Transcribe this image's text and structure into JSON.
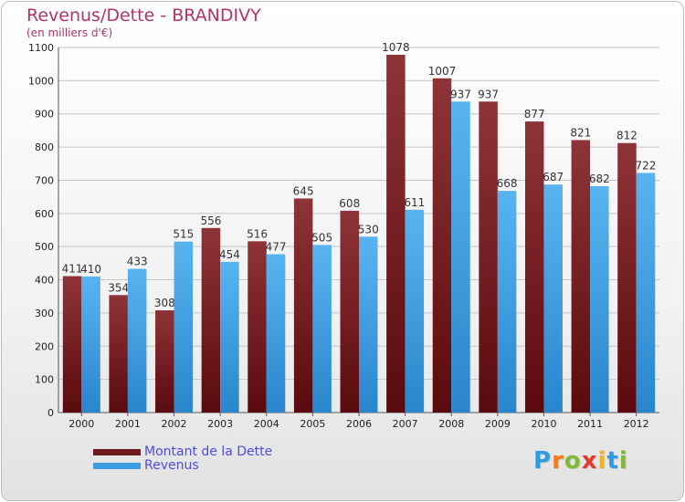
{
  "title": "Revenus/Dette - BRANDIVY",
  "subtitle": "(en milliers d'€)",
  "colors": {
    "title": "#b0346a",
    "series_dette": "#6e1a1e",
    "series_revenus": "#3d9ee3",
    "legend_text": "#4d4de0"
  },
  "legend": [
    {
      "label": "Montant de la Dette",
      "color": "#6e1a1e"
    },
    {
      "label": "Revenus",
      "color": "#3d9ee3"
    }
  ],
  "logo": {
    "text": "Proxiti",
    "icon": "proxiti-logo"
  },
  "chart_data": {
    "type": "bar",
    "title": "Revenus/Dette - BRANDIVY",
    "subtitle": "(en milliers d'€)",
    "categories": [
      "2000",
      "2001",
      "2002",
      "2003",
      "2004",
      "2005",
      "2006",
      "2007",
      "2008",
      "2009",
      "2010",
      "2011",
      "2012"
    ],
    "series": [
      {
        "name": "Montant de la Dette",
        "values": [
          411,
          354,
          308,
          556,
          516,
          645,
          608,
          1078,
          1007,
          937,
          877,
          821,
          812
        ]
      },
      {
        "name": "Revenus",
        "values": [
          410,
          433,
          515,
          454,
          477,
          505,
          530,
          611,
          937,
          668,
          687,
          682,
          722
        ]
      }
    ],
    "ylim": [
      0,
      1100
    ],
    "yticks": [
      0,
      100,
      200,
      300,
      400,
      500,
      600,
      700,
      800,
      900,
      1000,
      1100
    ],
    "grid": true,
    "legend_position": "bottom-left"
  }
}
